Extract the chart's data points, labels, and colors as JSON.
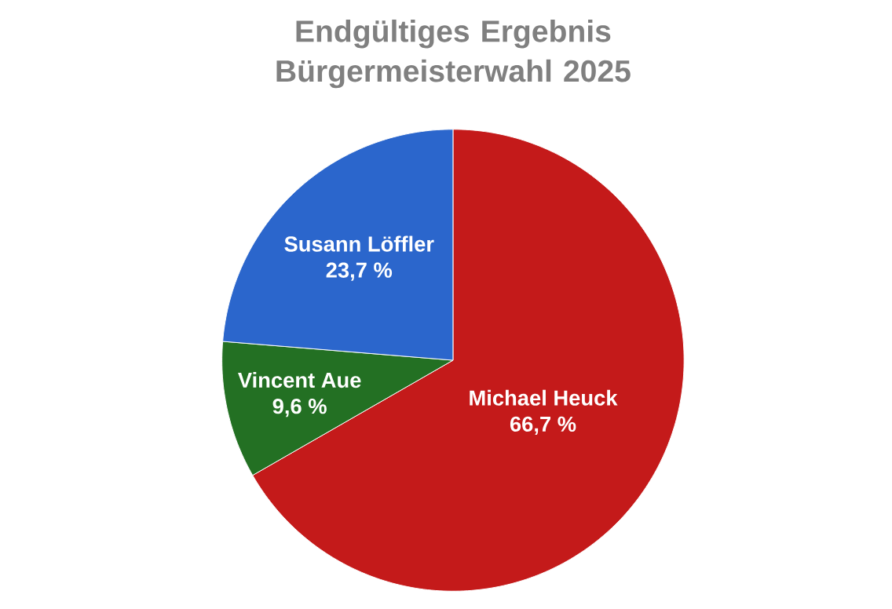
{
  "chart_data": {
    "type": "pie",
    "title": "Endgültiges Ergebnis Bürgermeisterwahl 2025",
    "categories": [
      "Michael Heuck",
      "Vincent Aue",
      "Susann Löffler"
    ],
    "values": [
      66.7,
      9.6,
      23.7
    ],
    "colors": [
      "#c41a1a",
      "#237023",
      "#2b66cc"
    ],
    "value_labels": [
      "66,7 %",
      "9,6 %",
      "23,7 %"
    ]
  }
}
